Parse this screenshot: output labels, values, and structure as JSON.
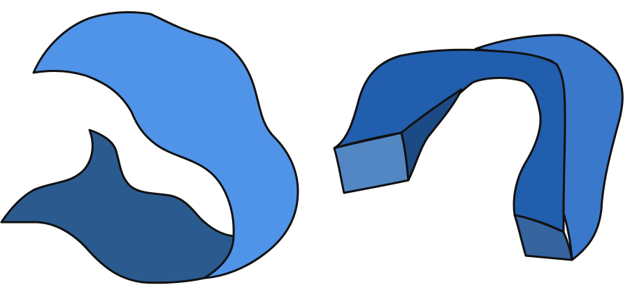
{
  "colors": {
    "background": "#ffffff",
    "outline": "#111111",
    "left_band_light": "#4f94e8",
    "left_band_dark": "#2b5a8f",
    "right_band_front": "#215ead",
    "right_band_back": "#3a78cc",
    "right_left_end_cap": "#5387c4",
    "right_inner_shadow": "#1c4a84",
    "right_bottom_cap": "#35649f"
  },
  "shapes": [
    {
      "name": "left-curved-shape",
      "parts": [
        "left-band-light",
        "left-band-dark"
      ]
    },
    {
      "name": "right-arch-shape",
      "parts": [
        "right-band-back",
        "right-band-front",
        "right-left-end-cap",
        "right-inner-shadow",
        "right-bottom-cap"
      ]
    }
  ]
}
